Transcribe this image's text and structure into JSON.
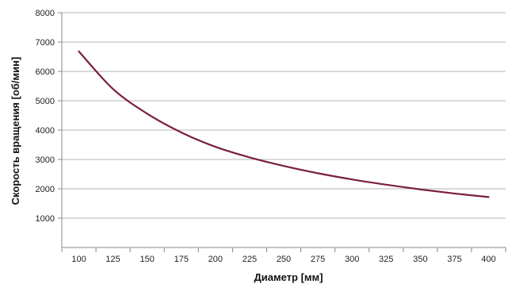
{
  "chart_data": {
    "type": "line",
    "title": "",
    "xlabel": "Диаметр [мм]",
    "ylabel": "Скорость вращения [об/мин]",
    "xlim": [
      87.5,
      412.5
    ],
    "ylim": [
      0,
      8000
    ],
    "x_ticks": [
      100,
      125,
      150,
      175,
      200,
      225,
      250,
      275,
      300,
      325,
      350,
      375,
      400
    ],
    "y_ticks": [
      1000,
      2000,
      3000,
      4000,
      5000,
      6000,
      7000,
      8000
    ],
    "grid": "horizontal",
    "legend": "none",
    "series": [
      {
        "color": "#7a1f3d",
        "x": [
          100,
          125,
          150,
          175,
          200,
          225,
          250,
          275,
          300,
          325,
          350,
          375,
          400
        ],
        "y": [
          6680,
          5400,
          4560,
          3920,
          3430,
          3070,
          2780,
          2530,
          2320,
          2140,
          1980,
          1840,
          1720
        ]
      }
    ]
  }
}
